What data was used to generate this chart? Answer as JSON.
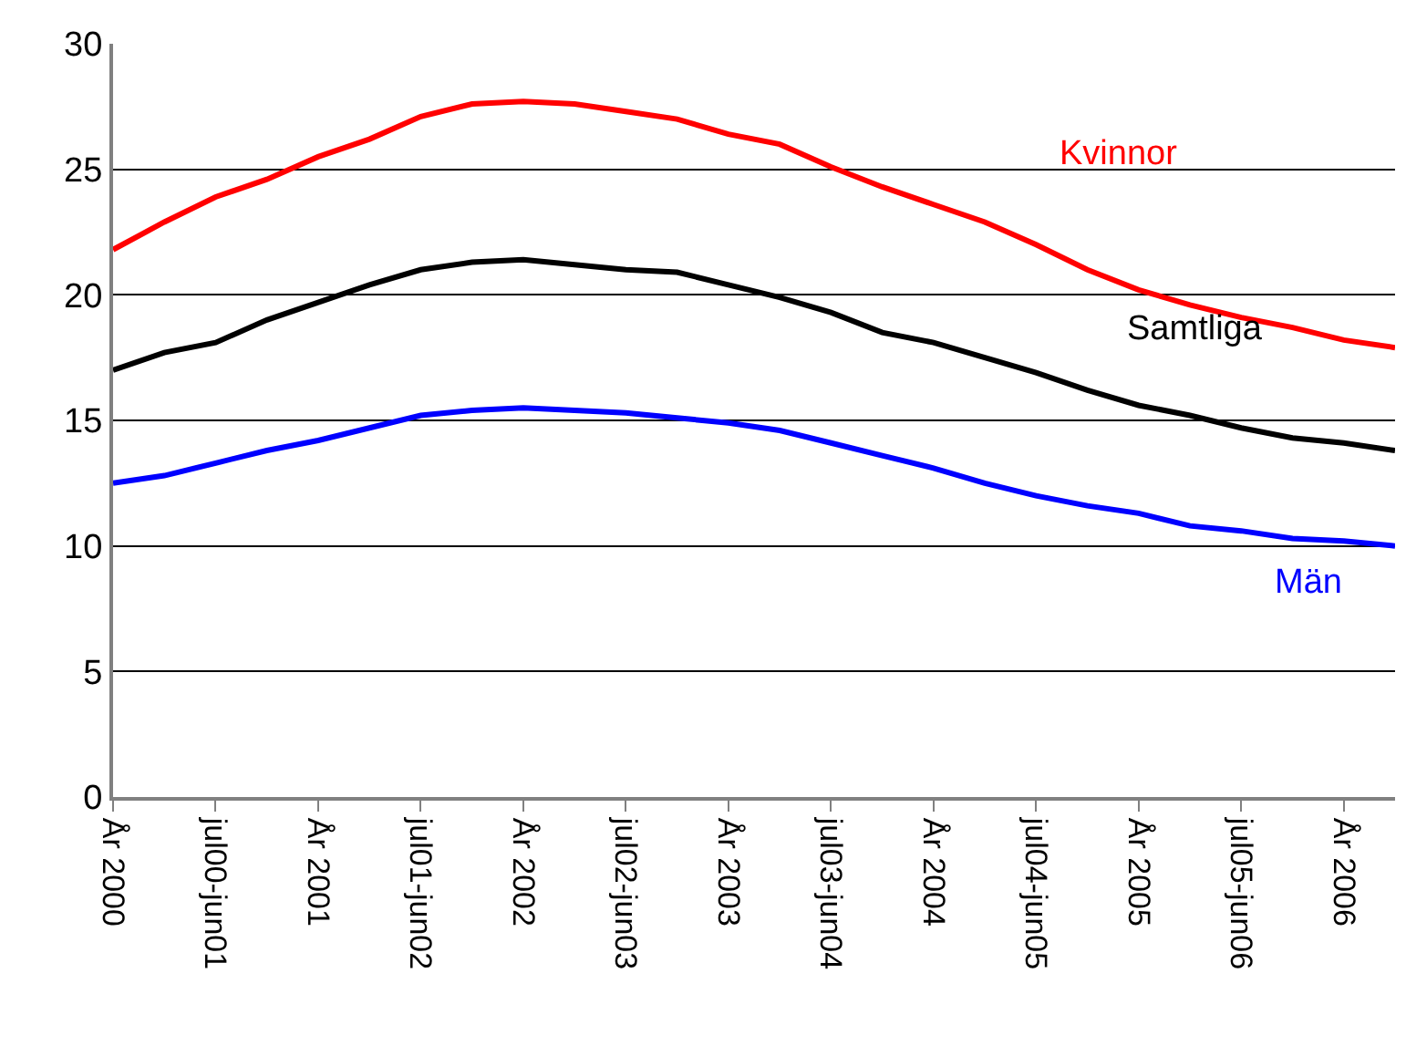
{
  "chart_data": {
    "type": "line",
    "categories": [
      "År 2000",
      null,
      "jul00-jun01",
      null,
      "År 2001",
      null,
      "jul01-jun02",
      null,
      "År 2002",
      null,
      "jul02-jun03",
      null,
      "År 2003",
      null,
      "jul03-jun04",
      null,
      "År 2004",
      null,
      "jul04-jun05",
      null,
      "År 2005",
      null,
      "jul05-jun06",
      null,
      "År 2006",
      null
    ],
    "series": [
      {
        "name": "Kvinnor",
        "color": "#ff0000",
        "values": [
          21.8,
          22.9,
          23.9,
          24.6,
          25.5,
          26.2,
          27.1,
          27.6,
          27.7,
          27.6,
          27.3,
          27.0,
          26.4,
          26.0,
          25.1,
          24.3,
          23.6,
          22.9,
          22.0,
          21.0,
          20.2,
          19.6,
          19.1,
          18.7,
          18.2,
          17.9
        ]
      },
      {
        "name": "Samtliga",
        "color": "#000000",
        "values": [
          17.0,
          17.7,
          18.1,
          19.0,
          19.7,
          20.4,
          21.0,
          21.3,
          21.4,
          21.2,
          21.0,
          20.9,
          20.4,
          19.9,
          19.3,
          18.5,
          18.1,
          17.5,
          16.9,
          16.2,
          15.6,
          15.2,
          14.7,
          14.3,
          14.1,
          13.8
        ]
      },
      {
        "name": "Män",
        "color": "#0000ff",
        "values": [
          12.5,
          12.8,
          13.3,
          13.8,
          14.2,
          14.7,
          15.2,
          15.4,
          15.5,
          15.4,
          15.3,
          15.1,
          14.9,
          14.6,
          14.1,
          13.6,
          13.1,
          12.5,
          12.0,
          11.6,
          11.3,
          10.8,
          10.6,
          10.3,
          10.2,
          10.0
        ]
      }
    ],
    "ylim": [
      0,
      30
    ],
    "yticks": [
      0,
      5,
      10,
      15,
      20,
      25,
      30
    ],
    "grid": "y",
    "legend": false,
    "marker": "none",
    "line_style": "solid"
  }
}
